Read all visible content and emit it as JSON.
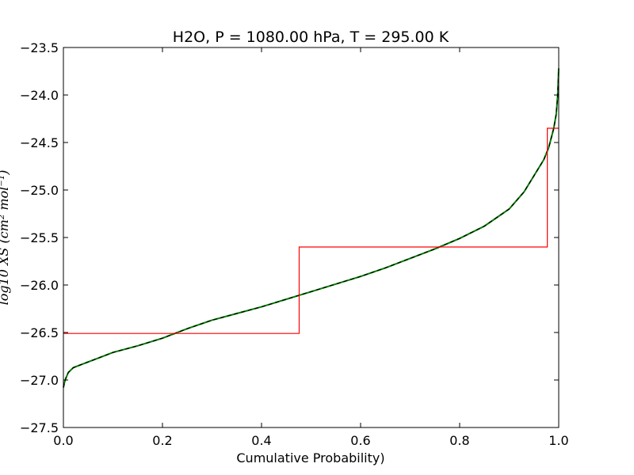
{
  "chart_data": {
    "type": "line",
    "title": "H2O, P = 1080.00 hPa, T = 295.00 K",
    "xlabel": "Cumulative Probability)",
    "ylabel": "log10 XS (cm² mol⁻¹)",
    "xlim": [
      0.0,
      1.0
    ],
    "ylim": [
      -27.5,
      -23.5
    ],
    "grid": false,
    "xticks": [
      0.0,
      0.2,
      0.4,
      0.6,
      0.8,
      1.0
    ],
    "xtick_labels": [
      "0.0",
      "0.2",
      "0.4",
      "0.6",
      "0.8",
      "1.0"
    ],
    "yticks": [
      -27.5,
      -27.0,
      -26.5,
      -26.0,
      -25.5,
      -25.0,
      -24.5,
      -24.0,
      -23.5
    ],
    "ytick_labels": [
      "−27.5",
      "−27.0",
      "−26.5",
      "−26.0",
      "−25.5",
      "−25.0",
      "−24.5",
      "−24.0",
      "−23.5"
    ],
    "series": [
      {
        "color": "#008000",
        "style": "line",
        "x": [
          0.0,
          0.002,
          0.005,
          0.01,
          0.02,
          0.04,
          0.07,
          0.1,
          0.15,
          0.2,
          0.25,
          0.3,
          0.35,
          0.4,
          0.45,
          0.5,
          0.55,
          0.6,
          0.65,
          0.7,
          0.75,
          0.8,
          0.85,
          0.9,
          0.93,
          0.95,
          0.97,
          0.98,
          0.99,
          0.995,
          0.998,
          1.0
        ],
        "y": [
          -27.08,
          -27.03,
          -26.98,
          -26.92,
          -26.87,
          -26.83,
          -26.77,
          -26.71,
          -26.64,
          -26.56,
          -26.46,
          -26.37,
          -26.3,
          -26.23,
          -26.15,
          -26.07,
          -25.99,
          -25.91,
          -25.82,
          -25.72,
          -25.62,
          -25.51,
          -25.38,
          -25.2,
          -25.02,
          -24.85,
          -24.68,
          -24.55,
          -24.35,
          -24.2,
          -24.0,
          -23.72
        ]
      },
      {
        "color": "#000000",
        "style": "dashed",
        "x": [
          0.0,
          0.002,
          0.005,
          0.01,
          0.02,
          0.04,
          0.07,
          0.1,
          0.15,
          0.2,
          0.25,
          0.3,
          0.35,
          0.4,
          0.45,
          0.5,
          0.55,
          0.6,
          0.65,
          0.7,
          0.75,
          0.8,
          0.85,
          0.9,
          0.93,
          0.95,
          0.97,
          0.98,
          0.99,
          0.995,
          0.998,
          1.0
        ],
        "y": [
          -27.08,
          -27.03,
          -26.98,
          -26.92,
          -26.87,
          -26.83,
          -26.77,
          -26.71,
          -26.64,
          -26.56,
          -26.46,
          -26.37,
          -26.3,
          -26.23,
          -26.15,
          -26.07,
          -25.99,
          -25.91,
          -25.82,
          -25.72,
          -25.62,
          -25.51,
          -25.38,
          -25.2,
          -25.02,
          -24.85,
          -24.68,
          -24.55,
          -24.35,
          -24.2,
          -24.0,
          -23.72
        ]
      },
      {
        "color": "#ff0000",
        "style": "step",
        "x": [
          0.0,
          0.476,
          0.476,
          0.977,
          0.977,
          1.0
        ],
        "y": [
          -26.51,
          -26.51,
          -25.6,
          -25.6,
          -24.35,
          -24.35
        ]
      }
    ]
  }
}
